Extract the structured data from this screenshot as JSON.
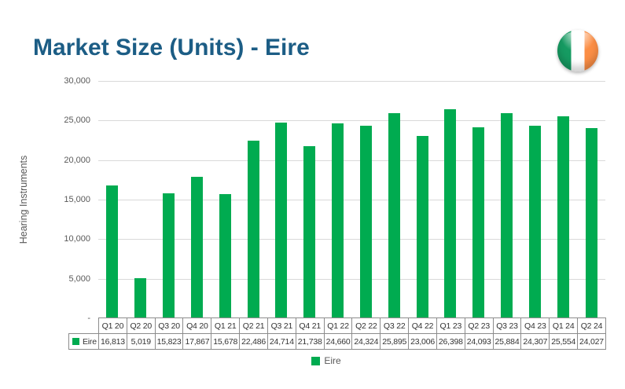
{
  "header": {
    "title": "Market Size (Units) - Eire"
  },
  "flag": {
    "name": "ireland-flag",
    "stripe_colors": [
      "#169B62",
      "#FFFFFF",
      "#FB8E45"
    ]
  },
  "colors": {
    "title_text": "#1C5D85",
    "axis_text": "#595959",
    "gridline": "#D9D9D9",
    "table_border": "#8C8C8C",
    "table_text": "#333333",
    "bar_green": "#00AB50"
  },
  "chart_data": {
    "type": "bar",
    "title": "Market Size (Units) - Eire",
    "xlabel": "",
    "ylabel": "Hearing Instruments",
    "series_name": "Eire",
    "categories": [
      "Q1 20",
      "Q2 20",
      "Q3 20",
      "Q4 20",
      "Q1 21",
      "Q2 21",
      "Q3 21",
      "Q4 21",
      "Q1 22",
      "Q2 22",
      "Q3 22",
      "Q4 22",
      "Q1 23",
      "Q2 23",
      "Q3 23",
      "Q4 23",
      "Q1 24",
      "Q2 24"
    ],
    "values": [
      16813,
      5019,
      15823,
      17867,
      15678,
      22486,
      24714,
      21738,
      24660,
      24324,
      25895,
      23006,
      26398,
      24093,
      25884,
      24307,
      25554,
      24027
    ],
    "values_formatted": [
      "16,813",
      "5,019",
      "15,823",
      "17,867",
      "15,678",
      "22,486",
      "24,714",
      "21,738",
      "24,660",
      "24,324",
      "25,895",
      "23,006",
      "26,398",
      "24,093",
      "25,884",
      "24,307",
      "25,554",
      "24,027"
    ],
    "ylim": [
      0,
      30000
    ],
    "ytick_values": [
      30000,
      25000,
      20000,
      15000,
      10000,
      5000,
      0
    ],
    "ytick_labels": [
      "30,000",
      "25,000",
      "20,000",
      "15,000",
      "10,000",
      "5,000",
      "-"
    ],
    "grid": true,
    "legend_position": "bottom",
    "bar_color": "#00AB50"
  }
}
